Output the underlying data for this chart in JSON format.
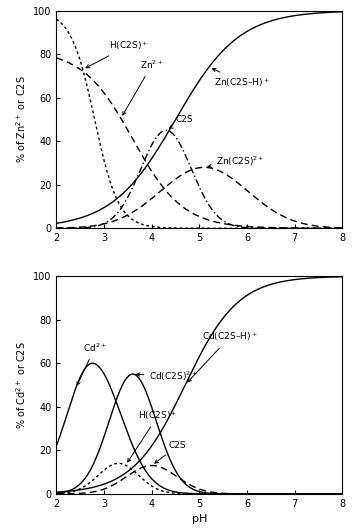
{
  "xlim": [
    2,
    8
  ],
  "ylim": [
    0,
    100
  ],
  "xticks": [
    2,
    3,
    4,
    5,
    6,
    7,
    8
  ],
  "yticks": [
    0,
    20,
    40,
    60,
    80,
    100
  ],
  "color": "black",
  "linewidth": 1.0,
  "fontsize": 7,
  "annot_fontsize": 6.5,
  "top_ylabel": "% of Zn$^{2+}$ or C2S",
  "bot_ylabel": "% of Cd$^{2+}$ or C2S",
  "xlabel": "pH"
}
